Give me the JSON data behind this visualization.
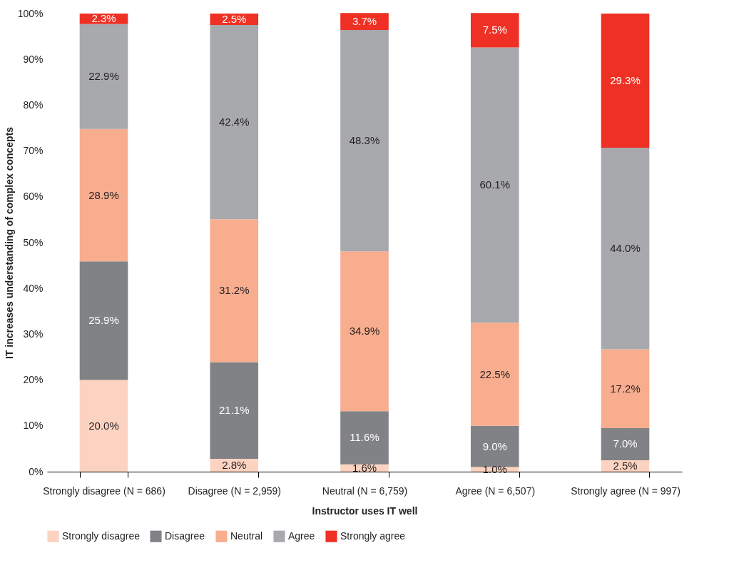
{
  "chart_data": {
    "type": "bar",
    "stacked": true,
    "xlabel": "Instructor uses IT well",
    "ylabel": "IT increases understanding of complex concepts",
    "categories": [
      "Strongly disagree (N = 686)",
      "Disagree (N = 2,959)",
      "Neutral (N = 6,759)",
      "Agree (N = 6,507)",
      "Strongly agree (N = 997)"
    ],
    "series": [
      {
        "name": "Strongly disagree",
        "color": "#fcd3c1",
        "values": [
          20.0,
          2.8,
          1.6,
          1.0,
          2.5
        ],
        "value_labels": [
          "20.0%",
          "2.8%",
          "1.6%",
          "1.0%",
          "2.5%"
        ]
      },
      {
        "name": "Disagree",
        "color": "#818286",
        "values": [
          25.9,
          21.1,
          11.6,
          9.0,
          7.0
        ],
        "value_labels": [
          "25.9%",
          "21.1%",
          "11.6%",
          "9.0%",
          "7.0%"
        ]
      },
      {
        "name": "Neutral",
        "color": "#f7ad8e",
        "values": [
          28.9,
          31.2,
          34.9,
          22.5,
          17.2
        ],
        "value_labels": [
          "28.9%",
          "31.2%",
          "34.9%",
          "22.5%",
          "17.2%"
        ]
      },
      {
        "name": "Agree",
        "color": "#a8a9ad",
        "values": [
          22.9,
          42.4,
          48.3,
          60.1,
          44.0
        ],
        "value_labels": [
          "22.9%",
          "42.4%",
          "48.3%",
          "60.1%",
          "44.0%"
        ]
      },
      {
        "name": "Strongly agree",
        "color": "#ee3124",
        "values": [
          2.3,
          2.5,
          3.7,
          7.5,
          29.3
        ],
        "value_labels": [
          "2.3%",
          "2.5%",
          "3.7%",
          "7.5%",
          "29.3%"
        ]
      }
    ],
    "ylim": [
      0,
      100
    ],
    "yticks": [
      {
        "value": 0,
        "label": "0%"
      },
      {
        "value": 10,
        "label": "10%"
      },
      {
        "value": 20,
        "label": "20%"
      },
      {
        "value": 30,
        "label": "30%"
      },
      {
        "value": 40,
        "label": "40%"
      },
      {
        "value": 50,
        "label": "50%"
      },
      {
        "value": 60,
        "label": "60%"
      },
      {
        "value": 70,
        "label": "70%"
      },
      {
        "value": 80,
        "label": "80%"
      },
      {
        "value": 90,
        "label": "90%"
      },
      {
        "value": 100,
        "label": "100%"
      }
    ],
    "grid": false,
    "legend": "bottom"
  }
}
